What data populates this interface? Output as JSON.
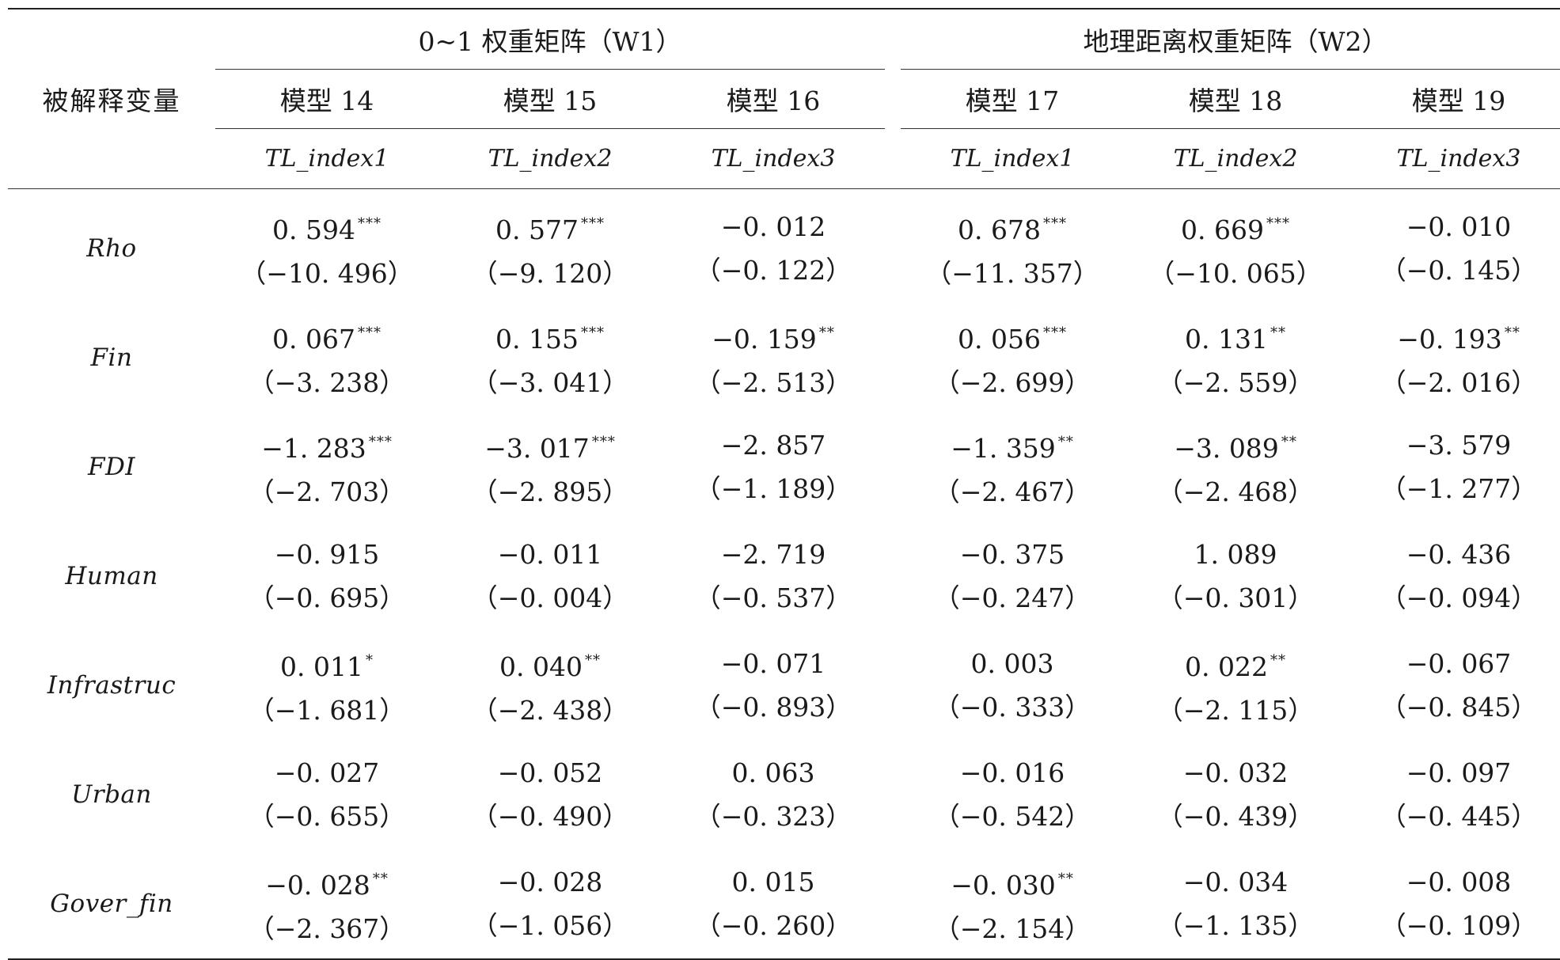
{
  "header": {
    "dependent_label": "被解释变量",
    "groups": [
      {
        "title": "0~1 权重矩阵（W1）"
      },
      {
        "title": "地理距离权重矩阵（W2）"
      }
    ],
    "models": [
      "模型 14",
      "模型 15",
      "模型 16",
      "模型 17",
      "模型 18",
      "模型 19"
    ],
    "dependent_vars": [
      "TL_index1",
      "TL_index2",
      "TL_index3",
      "TL_index1",
      "TL_index2",
      "TL_index3"
    ]
  },
  "rows": [
    {
      "variable": "Rho",
      "cells": [
        {
          "coef": "0. 594",
          "stars": "***",
          "t": "（−10. 496）"
        },
        {
          "coef": "0. 577",
          "stars": "***",
          "t": "（−9. 120）"
        },
        {
          "coef": "−0. 012",
          "stars": "",
          "t": "（−0. 122）"
        },
        {
          "coef": "0. 678",
          "stars": "***",
          "t": "（−11. 357）"
        },
        {
          "coef": "0. 669",
          "stars": "***",
          "t": "（−10. 065）"
        },
        {
          "coef": "−0. 010",
          "stars": "",
          "t": "（−0. 145）"
        }
      ]
    },
    {
      "variable": "Fin",
      "cells": [
        {
          "coef": "0. 067",
          "stars": "***",
          "t": "（−3. 238）"
        },
        {
          "coef": "0. 155",
          "stars": "***",
          "t": "（−3. 041）"
        },
        {
          "coef": "−0. 159",
          "stars": "**",
          "t": "（−2. 513）"
        },
        {
          "coef": "0. 056",
          "stars": "***",
          "t": "（−2. 699）"
        },
        {
          "coef": "0. 131",
          "stars": "**",
          "t": "（−2. 559）"
        },
        {
          "coef": "−0. 193",
          "stars": "**",
          "t": "（−2. 016）"
        }
      ]
    },
    {
      "variable": "FDI",
      "cells": [
        {
          "coef": "−1. 283",
          "stars": "***",
          "t": "（−2. 703）"
        },
        {
          "coef": "−3. 017",
          "stars": "***",
          "t": "（−2. 895）"
        },
        {
          "coef": "−2. 857",
          "stars": "",
          "t": "（−1. 189）"
        },
        {
          "coef": "−1. 359",
          "stars": "**",
          "t": "（−2. 467）"
        },
        {
          "coef": "−3. 089",
          "stars": "**",
          "t": "（−2. 468）"
        },
        {
          "coef": "−3. 579",
          "stars": "",
          "t": "（−1. 277）"
        }
      ]
    },
    {
      "variable": "Human",
      "cells": [
        {
          "coef": "−0. 915",
          "stars": "",
          "t": "（−0. 695）"
        },
        {
          "coef": "−0. 011",
          "stars": "",
          "t": "（−0. 004）"
        },
        {
          "coef": "−2. 719",
          "stars": "",
          "t": "（−0. 537）"
        },
        {
          "coef": "−0. 375",
          "stars": "",
          "t": "（−0. 247）"
        },
        {
          "coef": "1. 089",
          "stars": "",
          "t": "（−0. 301）"
        },
        {
          "coef": "−0. 436",
          "stars": "",
          "t": "（−0. 094）"
        }
      ]
    },
    {
      "variable": "Infrastruc",
      "cells": [
        {
          "coef": "0. 011",
          "stars": "*",
          "t": "（−1. 681）"
        },
        {
          "coef": "0. 040",
          "stars": "**",
          "t": "（−2. 438）"
        },
        {
          "coef": "−0. 071",
          "stars": "",
          "t": "（−0. 893）"
        },
        {
          "coef": "0. 003",
          "stars": "",
          "t": "（−0. 333）"
        },
        {
          "coef": "0. 022",
          "stars": "**",
          "t": "（−2. 115）"
        },
        {
          "coef": "−0. 067",
          "stars": "",
          "t": "（−0. 845）"
        }
      ]
    },
    {
      "variable": "Urban",
      "cells": [
        {
          "coef": "−0. 027",
          "stars": "",
          "t": "（−0. 655）"
        },
        {
          "coef": "−0. 052",
          "stars": "",
          "t": "（−0. 490）"
        },
        {
          "coef": "0. 063",
          "stars": "",
          "t": "（−0. 323）"
        },
        {
          "coef": "−0. 016",
          "stars": "",
          "t": "（−0. 542）"
        },
        {
          "coef": "−0. 032",
          "stars": "",
          "t": "（−0. 439）"
        },
        {
          "coef": "−0. 097",
          "stars": "",
          "t": "（−0. 445）"
        }
      ]
    },
    {
      "variable": "Gover_fin",
      "cells": [
        {
          "coef": "−0. 028",
          "stars": "**",
          "t": "（−2. 367）"
        },
        {
          "coef": "−0. 028",
          "stars": "",
          "t": "（−1. 056）"
        },
        {
          "coef": "0. 015",
          "stars": "",
          "t": "（−0. 260）"
        },
        {
          "coef": "−0. 030",
          "stars": "**",
          "t": "（−2. 154）"
        },
        {
          "coef": "−0. 034",
          "stars": "",
          "t": "（−1. 135）"
        },
        {
          "coef": "−0. 008",
          "stars": "",
          "t": "（−0. 109）"
        }
      ]
    }
  ]
}
